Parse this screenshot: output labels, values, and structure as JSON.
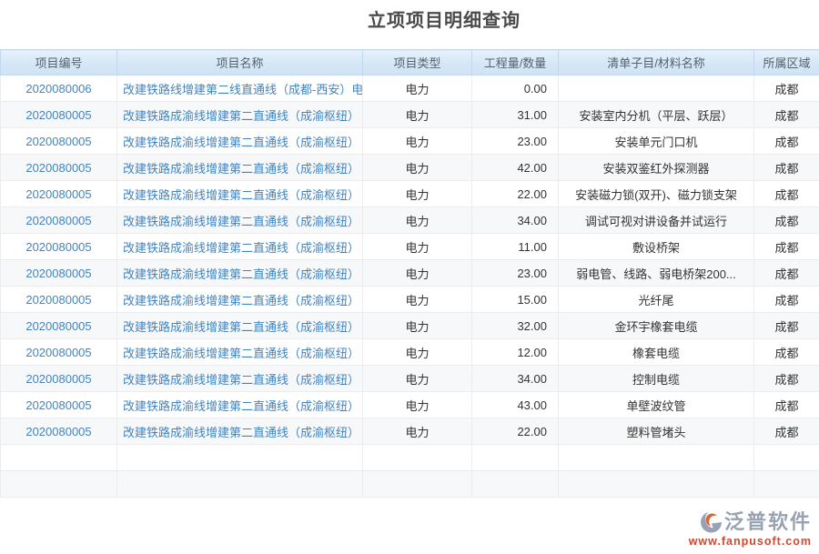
{
  "title": "立项项目明细查询",
  "table": {
    "columns": [
      {
        "key": "code",
        "label": "项目编号"
      },
      {
        "key": "name",
        "label": "项目名称"
      },
      {
        "key": "type",
        "label": "项目类型"
      },
      {
        "key": "qty",
        "label": "工程量/数量"
      },
      {
        "key": "item",
        "label": "清单子目/材料名称"
      },
      {
        "key": "region",
        "label": "所属区域"
      }
    ],
    "rows": [
      {
        "code": "2020080006",
        "name": "改建铁路线增建第二线直通线（成都-西安）电",
        "type": "电力",
        "qty": "0.00",
        "item": "",
        "region": "成都"
      },
      {
        "code": "2020080005",
        "name": "改建铁路成渝线增建第二直通线（成渝枢纽）",
        "type": "电力",
        "qty": "31.00",
        "item": "安装室内分机（平层、跃层）",
        "region": "成都"
      },
      {
        "code": "2020080005",
        "name": "改建铁路成渝线增建第二直通线（成渝枢纽）",
        "type": "电力",
        "qty": "23.00",
        "item": "安装单元门口机",
        "region": "成都"
      },
      {
        "code": "2020080005",
        "name": "改建铁路成渝线增建第二直通线（成渝枢纽）",
        "type": "电力",
        "qty": "42.00",
        "item": "安装双鉴红外探测器",
        "region": "成都"
      },
      {
        "code": "2020080005",
        "name": "改建铁路成渝线增建第二直通线（成渝枢纽）",
        "type": "电力",
        "qty": "22.00",
        "item": "安装磁力锁(双开)、磁力锁支架",
        "region": "成都"
      },
      {
        "code": "2020080005",
        "name": "改建铁路成渝线增建第二直通线（成渝枢纽）",
        "type": "电力",
        "qty": "34.00",
        "item": "调试可视对讲设备并试运行",
        "region": "成都"
      },
      {
        "code": "2020080005",
        "name": "改建铁路成渝线增建第二直通线（成渝枢纽）",
        "type": "电力",
        "qty": "11.00",
        "item": "敷设桥架",
        "region": "成都"
      },
      {
        "code": "2020080005",
        "name": "改建铁路成渝线增建第二直通线（成渝枢纽）",
        "type": "电力",
        "qty": "23.00",
        "item": "弱电管、线路、弱电桥架200...",
        "region": "成都"
      },
      {
        "code": "2020080005",
        "name": "改建铁路成渝线增建第二直通线（成渝枢纽）",
        "type": "电力",
        "qty": "15.00",
        "item": "光纤尾",
        "region": "成都"
      },
      {
        "code": "2020080005",
        "name": "改建铁路成渝线增建第二直通线（成渝枢纽）",
        "type": "电力",
        "qty": "32.00",
        "item": "金环宇橡套电缆",
        "region": "成都"
      },
      {
        "code": "2020080005",
        "name": "改建铁路成渝线增建第二直通线（成渝枢纽）",
        "type": "电力",
        "qty": "12.00",
        "item": "橡套电缆",
        "region": "成都"
      },
      {
        "code": "2020080005",
        "name": "改建铁路成渝线增建第二直通线（成渝枢纽）",
        "type": "电力",
        "qty": "34.00",
        "item": "控制电缆",
        "region": "成都"
      },
      {
        "code": "2020080005",
        "name": "改建铁路成渝线增建第二直通线（成渝枢纽）",
        "type": "电力",
        "qty": "43.00",
        "item": "单壁波纹管",
        "region": "成都"
      },
      {
        "code": "2020080005",
        "name": "改建铁路成渝线增建第二直通线（成渝枢纽）",
        "type": "电力",
        "qty": "22.00",
        "item": "塑料管堵头",
        "region": "成都"
      }
    ],
    "empty_rows": 2
  },
  "footer": {
    "brand": "泛普软件",
    "url": "www.fanpusoft.com"
  },
  "colors": {
    "link_blue": "#4184c1",
    "header_bg": "#d5e7f6",
    "brand_gray": "#98a2b4",
    "brand_orange": "#cc4a33"
  }
}
